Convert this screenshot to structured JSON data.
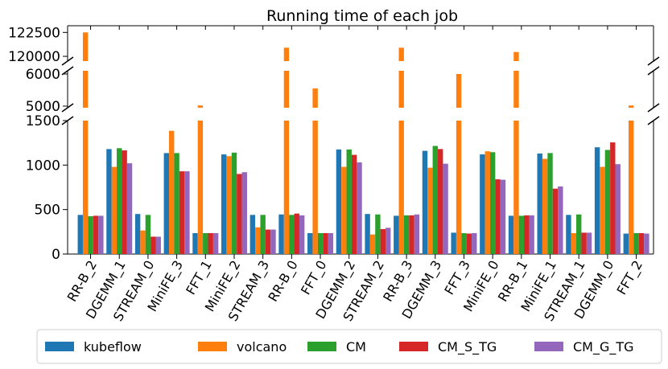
{
  "chart_data": {
    "type": "bar",
    "title": "Running time of each job",
    "xlabel": "",
    "ylabel": "",
    "broken_y_axis": true,
    "y_segments": [
      {
        "ylim": [
          119500,
          123200
        ],
        "ticks": [
          120000,
          122500
        ],
        "tick_labels": [
          "120000",
          "122500"
        ]
      },
      {
        "ylim": [
          4950,
          6100
        ],
        "ticks": [
          5000,
          6000
        ],
        "tick_labels": [
          "5000",
          "6000"
        ]
      },
      {
        "ylim": [
          0,
          1500
        ],
        "ticks": [
          0,
          500,
          1000,
          1500
        ],
        "tick_labels": [
          "0",
          "500",
          "1000",
          "1500"
        ]
      }
    ],
    "categories": [
      "RR-B_2",
      "DGEMM_1",
      "STREAM_0",
      "MiniFE_3",
      "FFT_1",
      "MiniFE_2",
      "STREAM_3",
      "RR-B_0",
      "FFT_0",
      "DGEMM_2",
      "STREAM_2",
      "RR-B_3",
      "DGEMM_3",
      "FFT_3",
      "MiniFE_0",
      "RR-B_1",
      "MiniFE_1",
      "STREAM_1",
      "DGEMM_0",
      "FFT_2"
    ],
    "series": [
      {
        "name": "kubeflow",
        "color": "#1f77b4",
        "values": [
          440,
          1180,
          450,
          1135,
          235,
          1120,
          440,
          445,
          235,
          1175,
          450,
          430,
          1160,
          240,
          1120,
          430,
          1130,
          440,
          1200,
          230
        ]
      },
      {
        "name": "volcano",
        "color": "#ff7f0e",
        "values": [
          122500,
          980,
          265,
          1385,
          5020,
          1100,
          300,
          120900,
          5550,
          980,
          220,
          120900,
          970,
          6000,
          1155,
          120450,
          1070,
          235,
          980,
          5020
        ]
      },
      {
        "name": "CM",
        "color": "#2ca02c",
        "values": [
          425,
          1190,
          440,
          1135,
          235,
          1140,
          440,
          440,
          235,
          1175,
          445,
          435,
          1215,
          235,
          1145,
          430,
          1135,
          445,
          1170,
          235
        ]
      },
      {
        "name": "CM_S_TG",
        "color": "#d62728",
        "values": [
          430,
          1165,
          195,
          930,
          235,
          900,
          275,
          455,
          235,
          1115,
          280,
          435,
          1180,
          230,
          840,
          435,
          735,
          240,
          1255,
          235
        ]
      },
      {
        "name": "CM_G_TG",
        "color": "#9467bd",
        "values": [
          430,
          1020,
          195,
          930,
          235,
          920,
          275,
          435,
          235,
          1030,
          295,
          445,
          1015,
          235,
          835,
          435,
          760,
          240,
          1010,
          230
        ]
      }
    ],
    "legend": "bottom",
    "grid": false
  }
}
